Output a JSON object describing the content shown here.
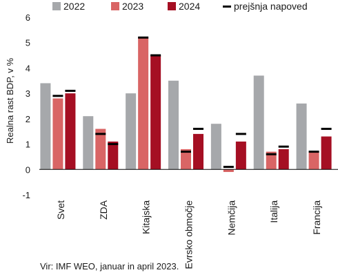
{
  "chart_data": {
    "type": "bar",
    "categories": [
      "Svet",
      "ZDA",
      "Kitajska",
      "Evrsko območje",
      "Nemčija",
      "Italija",
      "Francija"
    ],
    "series": [
      {
        "name": "2022",
        "color": "#a6a8ab",
        "values": [
          3.4,
          2.1,
          3.0,
          3.5,
          1.8,
          3.7,
          2.6
        ]
      },
      {
        "name": "2023",
        "color": "#d96565",
        "values": [
          2.8,
          1.6,
          5.2,
          0.8,
          -0.1,
          0.7,
          0.7
        ]
      },
      {
        "name": "2024",
        "color": "#a50f23",
        "values": [
          3.0,
          1.1,
          4.5,
          1.4,
          1.1,
          0.8,
          1.3
        ]
      }
    ],
    "markers": {
      "name": "prejšnja napoved",
      "color": "#000000",
      "values_2023": [
        2.9,
        1.4,
        5.2,
        0.7,
        0.1,
        0.6,
        0.7
      ],
      "values_2024": [
        3.1,
        1.0,
        4.5,
        1.6,
        1.4,
        0.9,
        1.6
      ]
    },
    "ylabel": "Realna rast BDP, v %",
    "ylim": [
      -1,
      6
    ],
    "yticks": [
      -1,
      0,
      1,
      2,
      3,
      4,
      5,
      6
    ]
  },
  "source": "Vir: IMF WEO, januar in april 2023."
}
